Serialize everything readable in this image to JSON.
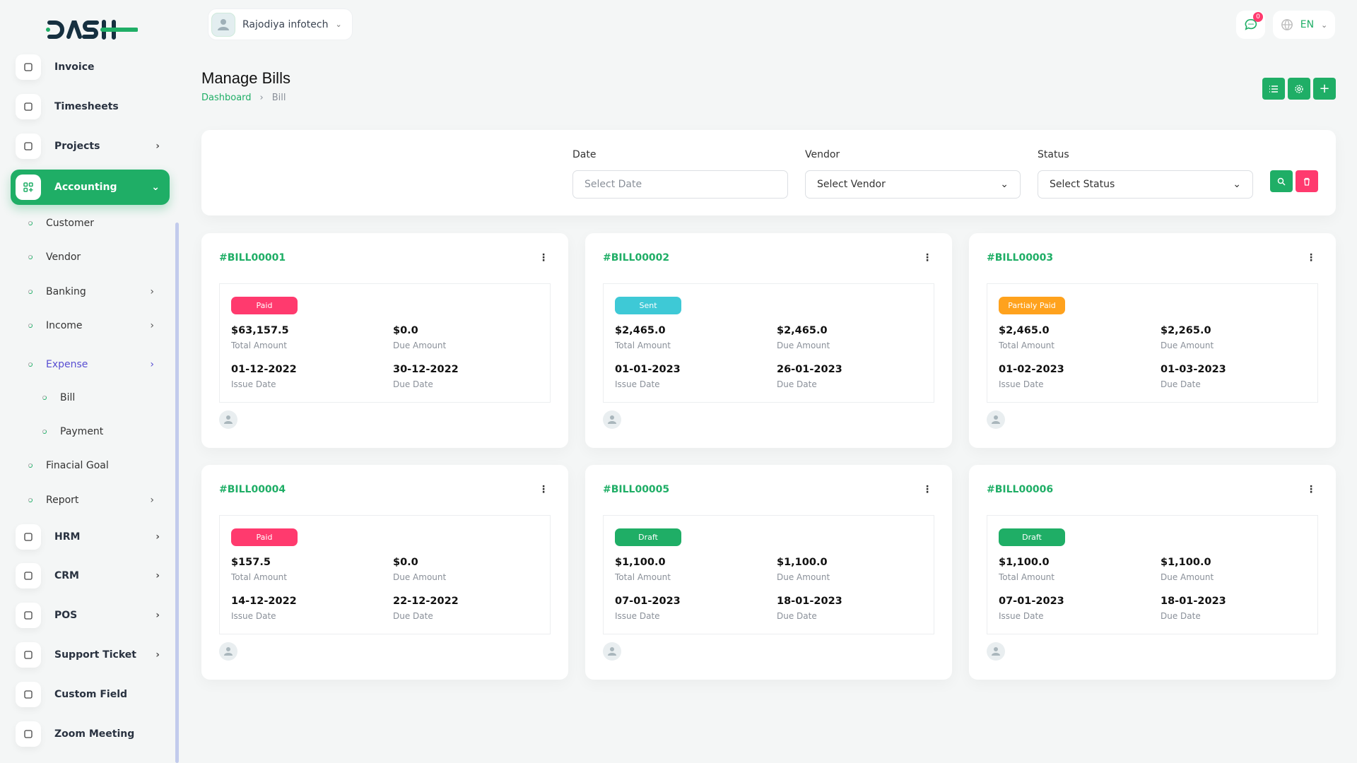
{
  "header": {
    "logo_text": "DASH",
    "company": "Rajodiya infotech",
    "notifications": "0",
    "language": "EN"
  },
  "sidebar": {
    "top_items": [
      {
        "label": "Invoice",
        "icon": "file-icon"
      },
      {
        "label": "Timesheets",
        "icon": "clock-icon"
      },
      {
        "label": "Projects",
        "icon": "checkbox-icon",
        "chevron": true
      }
    ],
    "active": {
      "label": "Accounting",
      "icon": "grid-plus-icon"
    },
    "sub_items": [
      {
        "label": "Customer",
        "level": 1
      },
      {
        "label": "Vendor",
        "level": 1
      },
      {
        "label": "Banking",
        "level": 1,
        "chevron": true
      },
      {
        "label": "Income",
        "level": 1,
        "chevron": true
      },
      {
        "label": "Expense",
        "level": 1,
        "chevron": true,
        "highlight": true
      },
      {
        "label": "Bill",
        "level": 2
      },
      {
        "label": "Payment",
        "level": 2
      },
      {
        "label": "Finacial Goal",
        "level": 1
      },
      {
        "label": "Report",
        "level": 1,
        "chevron": true
      }
    ],
    "bottom_items": [
      {
        "label": "HRM",
        "icon": "hrm-icon",
        "chevron": true
      },
      {
        "label": "CRM",
        "icon": "crm-icon",
        "chevron": true
      },
      {
        "label": "POS",
        "icon": "pos-icon",
        "chevron": true
      },
      {
        "label": "Support Ticket",
        "icon": "headphones-icon",
        "chevron": true
      },
      {
        "label": "Custom Field",
        "icon": "plus-circle-icon"
      },
      {
        "label": "Zoom Meeting",
        "icon": "video-icon"
      }
    ]
  },
  "page": {
    "title": "Manage Bills",
    "breadcrumb": [
      "Dashboard",
      "Bill"
    ]
  },
  "filters": {
    "date_label": "Date",
    "date_placeholder": "Select Date",
    "vendor_label": "Vendor",
    "vendor_value": "Select Vendor",
    "status_label": "Status",
    "status_value": "Select Status"
  },
  "labels": {
    "total": "Total Amount",
    "due": "Due Amount",
    "issue": "Issue Date",
    "due_date": "Due Date"
  },
  "colors": {
    "accent": "#1fae66",
    "paid": "#ff3a6e",
    "sent": "#3ec9d6",
    "partial": "#ffa21d",
    "draft": "#1fae66"
  },
  "bills": [
    {
      "id": "#BILL00001",
      "status": "Paid",
      "status_key": "paid",
      "total": "$63,157.5",
      "due": "$0.0",
      "issue_date": "01-12-2022",
      "due_date": "30-12-2022"
    },
    {
      "id": "#BILL00002",
      "status": "Sent",
      "status_key": "sent",
      "total": "$2,465.0",
      "due": "$2,465.0",
      "issue_date": "01-01-2023",
      "due_date": "26-01-2023"
    },
    {
      "id": "#BILL00003",
      "status": "Partialy Paid",
      "status_key": "partial",
      "total": "$2,465.0",
      "due": "$2,265.0",
      "issue_date": "01-02-2023",
      "due_date": "01-03-2023"
    },
    {
      "id": "#BILL00004",
      "status": "Paid",
      "status_key": "paid",
      "total": "$157.5",
      "due": "$0.0",
      "issue_date": "14-12-2022",
      "due_date": "22-12-2022"
    },
    {
      "id": "#BILL00005",
      "status": "Draft",
      "status_key": "draft",
      "total": "$1,100.0",
      "due": "$1,100.0",
      "issue_date": "07-01-2023",
      "due_date": "18-01-2023"
    },
    {
      "id": "#BILL00006",
      "status": "Draft",
      "status_key": "draft",
      "total": "$1,100.0",
      "due": "$1,100.0",
      "issue_date": "07-01-2023",
      "due_date": "18-01-2023"
    }
  ]
}
